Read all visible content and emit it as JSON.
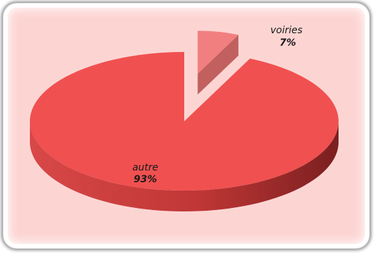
{
  "chart_data": {
    "type": "pie",
    "style": "3d-exploded",
    "title": "",
    "slices": [
      {
        "label": "autre",
        "value": 93,
        "percent_label": "93%",
        "color": "#f05050",
        "side_color": "#c23a3a",
        "exploded": false
      },
      {
        "label": "voiries",
        "value": 7,
        "percent_label": "7%",
        "color": "#f27f7f",
        "side_color": "#b55656",
        "exploded": true
      }
    ],
    "legend": "none",
    "labels_position": "on-slices"
  },
  "colors": {
    "panel_background": "#fcd5d3",
    "frame_border": "#ffffff"
  }
}
